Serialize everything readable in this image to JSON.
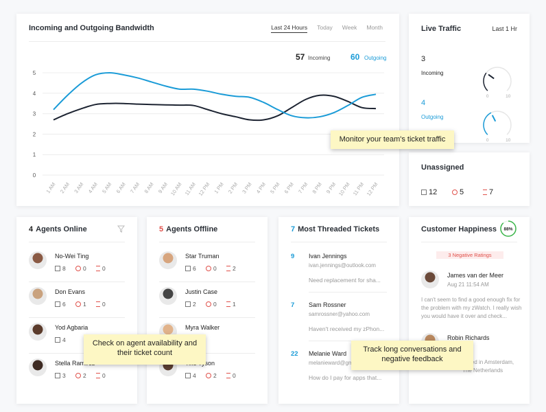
{
  "chart_data": {
    "type": "line",
    "title": "Incoming and Outgoing Bandwidth",
    "categories": [
      "1 AM",
      "2 AM",
      "3 AM",
      "4 AM",
      "5 AM",
      "6 AM",
      "7 AM",
      "8 AM",
      "9 AM",
      "10 AM",
      "11 AM",
      "12 PM",
      "1 PM",
      "2 PM",
      "3 PM",
      "4 PM",
      "5 PM",
      "6 PM",
      "7 PM",
      "8 PM",
      "9 PM",
      "10 PM",
      "11 PM",
      "12 PM"
    ],
    "series": [
      {
        "name": "Incoming",
        "color": "#1c2331",
        "values": [
          2.7,
          3.0,
          3.25,
          3.45,
          3.5,
          3.5,
          3.47,
          3.45,
          3.43,
          3.42,
          3.4,
          3.2,
          3.0,
          2.85,
          2.7,
          2.7,
          2.9,
          3.3,
          3.7,
          3.9,
          3.85,
          3.6,
          3.3,
          3.25
        ]
      },
      {
        "name": "Outgoing",
        "color": "#1a9bd7",
        "values": [
          3.2,
          3.9,
          4.5,
          4.9,
          5.0,
          4.9,
          4.75,
          4.55,
          4.35,
          4.2,
          4.2,
          4.1,
          3.95,
          3.85,
          3.8,
          3.55,
          3.2,
          2.9,
          2.8,
          2.85,
          3.05,
          3.4,
          3.8,
          3.95
        ]
      }
    ],
    "ylim": [
      0,
      5
    ],
    "yticks": [
      0,
      1,
      2,
      3,
      4,
      5
    ],
    "grid": true
  },
  "bandwidth": {
    "tabs": [
      "Last 24 Hours",
      "Today",
      "Week",
      "Month"
    ],
    "incoming_total": 57,
    "outgoing_total": 60
  },
  "live_traffic": {
    "title": "Live Traffic",
    "period": "Last 1 Hr",
    "gauges": [
      {
        "value": 3,
        "label": "Incoming",
        "min": 0,
        "max": 10,
        "color": "#1c2331"
      },
      {
        "value": 4,
        "label": "Outgoing",
        "min": 0,
        "max": 10,
        "color": "#1a9bd7"
      }
    ]
  },
  "unassigned": {
    "title": "Unassigned",
    "counts": [
      12,
      5,
      7
    ]
  },
  "agents_online": {
    "count": 4,
    "title": "Agents Online",
    "agents": [
      {
        "name": "No-Wei Ting",
        "stats": [
          8,
          0,
          0
        ]
      },
      {
        "name": "Don Evans",
        "stats": [
          6,
          1,
          0
        ]
      },
      {
        "name": "Yod Agbaria",
        "stats": [
          4
        ]
      },
      {
        "name": "Stella Ramirez",
        "stats": [
          3,
          2,
          0
        ]
      }
    ]
  },
  "agents_offline": {
    "count": 5,
    "title": "Agents Offline",
    "agents": [
      {
        "name": "Star Truman",
        "stats": [
          6,
          0,
          2
        ]
      },
      {
        "name": "Justin Case",
        "stats": [
          2,
          0,
          1
        ]
      },
      {
        "name": "Myra Walker",
        "stats": []
      },
      {
        "name": "Tike Tyson",
        "stats": [
          4,
          2,
          0
        ]
      }
    ]
  },
  "threaded_tickets": {
    "count": 7,
    "title": "Most Threaded Tickets",
    "tickets": [
      {
        "count": 9,
        "name": "Ivan Jennings",
        "email": "ivan.jennings@outlook.com",
        "preview": "Need replacement for sha..."
      },
      {
        "count": 7,
        "name": "Sam Rossner",
        "email": "samrossner@yahoo.com",
        "preview": "Haven't received my zPhon..."
      },
      {
        "count": 22,
        "name": "Melanie Ward",
        "email": "melanieward@gmail.com",
        "preview": "How do I pay for apps that..."
      }
    ]
  },
  "customer_happiness": {
    "title": "Customer Happiness",
    "score": 88,
    "score_label": "88%",
    "negative_label": "3 Negative Ratings",
    "reviews": [
      {
        "name": "James van der Meer",
        "date": "Aug 21 11:54 AM",
        "text": "I can't seem to find a good enough fix for the problem with my zWatch. I really wish you would have it over and check..."
      },
      {
        "name": "Robin Richards",
        "text": "based in Amsterdam, The Netherlands"
      }
    ]
  },
  "callouts": [
    "Monitor your team's ticket traffic",
    "Check on agent availability and their ticket count",
    "Track long conversations and negative feedback"
  ]
}
